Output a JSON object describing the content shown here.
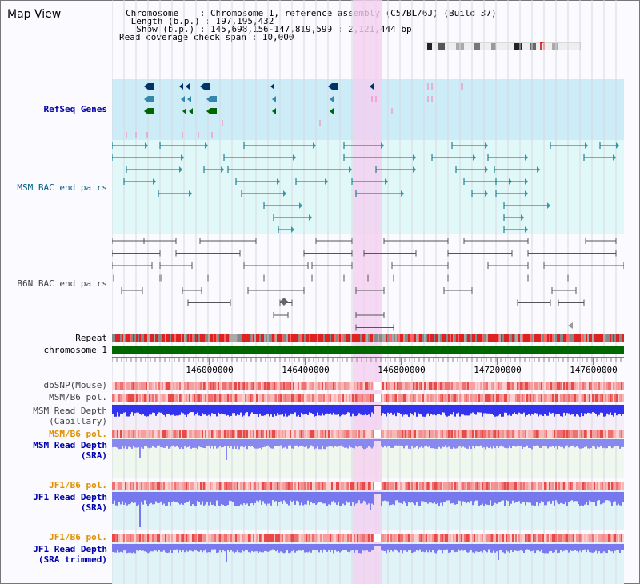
{
  "app": {
    "title": "Map View"
  },
  "info": {
    "chromosome_line": "Chromosome    : Chromosome 1, reference assembly (C57BL/6J) (Build 37)",
    "length_line": " Length (b.p.) : 197,195,432",
    "show_line": "  Show (b.p.) : 145,698,156-147,819,599 : 2,121,444 bp",
    "coverage_line": "Read coverage check span : 10,000"
  },
  "tracks": {
    "refseq": "RefSeq Genes",
    "msm_bac": "MSM BAC end pairs",
    "b6n_bac": "B6N BAC end pairs",
    "repeat": "Repeat",
    "chromosome": "chromosome 1",
    "dbsnp": "dbSNP(Mouse)",
    "msm_b6_pol": "MSM/B6 pol.",
    "msm_depth_cap": "MSM Read Depth\n(Capillary)",
    "msm_b6_pol2": "MSM/B6 pol.",
    "msm_depth_sra": "MSM Read Depth\n(SRA)",
    "jf1_b6_pol": "JF1/B6 pol.",
    "jf1_depth_sra": "JF1 Read Depth\n(SRA)",
    "jf1_b6_pol2": "JF1/B6 pol.",
    "jf1_depth_trim": "JF1 Read Depth\n(SRA trimmed)"
  },
  "axis": {
    "ticks": [
      "146000000",
      "146400000",
      "146800000",
      "147200000",
      "147600000"
    ]
  },
  "colors": {
    "refseq_bg": "#ccecf8",
    "msm_bac_bg": "#e0f8f8",
    "b6n_bg": "#f8f8ff",
    "highlight": "#f4d0f0",
    "chromosome": "#006600",
    "depth_blue": "#3333ee",
    "sra_blue": "#8888ee"
  }
}
